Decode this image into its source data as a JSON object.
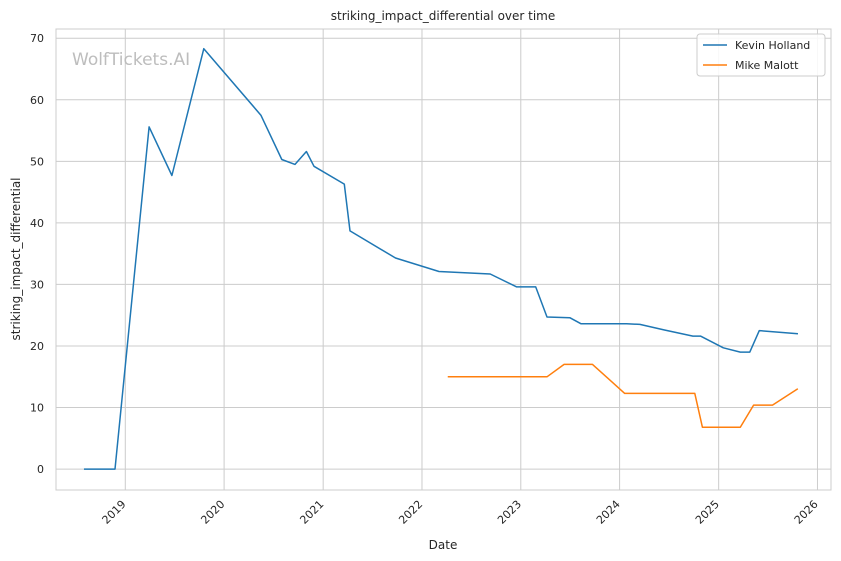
{
  "watermark": "WolfTickets.AI",
  "chart_data": {
    "type": "line",
    "title": "striking_impact_differential over time",
    "xlabel": "Date",
    "ylabel": "striking_impact_differential",
    "x_ticks": [
      "2019",
      "2020",
      "2021",
      "2022",
      "2023",
      "2024",
      "2025",
      "2026"
    ],
    "y_ticks": [
      0,
      10,
      20,
      30,
      40,
      50,
      60,
      70
    ],
    "xlim": [
      "2018-04-20",
      "2026-02-20"
    ],
    "ylim": [
      -3.4,
      71.5
    ],
    "grid": true,
    "legend_position": "top-right",
    "series": [
      {
        "name": "Kevin Holland",
        "color": "#1f77b4",
        "points": [
          [
            "2018-08-04",
            0
          ],
          [
            "2018-11-24",
            0
          ],
          [
            "2019-03-30",
            55.6
          ],
          [
            "2019-06-22",
            47.7
          ],
          [
            "2019-10-18",
            68.3
          ],
          [
            "2020-05-16",
            57.5
          ],
          [
            "2020-08-01",
            50.3
          ],
          [
            "2020-09-19",
            49.5
          ],
          [
            "2020-10-31",
            51.6
          ],
          [
            "2020-11-28",
            49.2
          ],
          [
            "2021-03-20",
            46.3
          ],
          [
            "2021-04-10",
            38.7
          ],
          [
            "2021-09-25",
            34.3
          ],
          [
            "2022-03-05",
            32.1
          ],
          [
            "2022-09-10",
            31.7
          ],
          [
            "2022-12-17",
            29.6
          ],
          [
            "2023-02-25",
            29.6
          ],
          [
            "2023-04-08",
            24.7
          ],
          [
            "2023-07-01",
            24.6
          ],
          [
            "2023-08-12",
            23.6
          ],
          [
            "2024-01-27",
            23.6
          ],
          [
            "2024-03-16",
            23.5
          ],
          [
            "2024-06-15",
            22.6
          ],
          [
            "2024-09-28",
            21.6
          ],
          [
            "2024-10-26",
            21.6
          ],
          [
            "2025-01-18",
            19.7
          ],
          [
            "2025-03-22",
            19.0
          ],
          [
            "2025-04-26",
            19.0
          ],
          [
            "2025-05-31",
            22.5
          ],
          [
            "2025-10-18",
            22.0
          ]
        ]
      },
      {
        "name": "Mike Malott",
        "color": "#ff7f0e",
        "points": [
          [
            "2022-04-09",
            15.0
          ],
          [
            "2023-04-08",
            15.0
          ],
          [
            "2023-06-10",
            17.0
          ],
          [
            "2023-09-23",
            17.0
          ],
          [
            "2024-01-20",
            12.3
          ],
          [
            "2024-10-05",
            12.3
          ],
          [
            "2024-11-02",
            6.8
          ],
          [
            "2025-03-22",
            6.8
          ],
          [
            "2025-05-10",
            10.4
          ],
          [
            "2025-07-19",
            10.4
          ],
          [
            "2025-10-18",
            13.0
          ]
        ]
      }
    ]
  }
}
